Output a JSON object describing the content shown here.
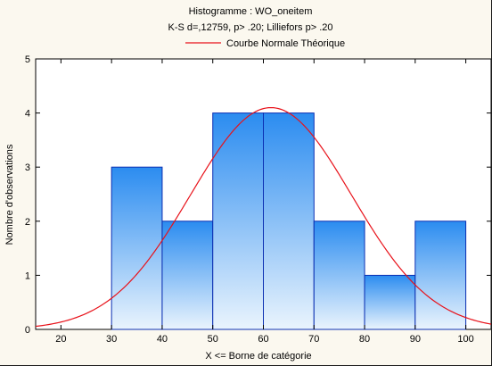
{
  "chart_data": {
    "type": "bar",
    "title": "Histogramme : WO_oneitem",
    "subtitle": "K-S d=,12759, p> .20; Lilliefors p> .20",
    "legend": {
      "label": "Courbe Normale Théorique",
      "placement": "top"
    },
    "xlabel": "X <= Borne de catégorie",
    "ylabel": "Nombre d'observations",
    "xlim": [
      15,
      105
    ],
    "ylim": [
      0,
      5
    ],
    "x_ticks": [
      20,
      30,
      40,
      50,
      60,
      70,
      80,
      90,
      100
    ],
    "y_ticks": [
      0,
      1,
      2,
      3,
      4,
      5
    ],
    "bins": [
      {
        "from": 30,
        "to": 40,
        "value": 3
      },
      {
        "from": 40,
        "to": 50,
        "value": 2
      },
      {
        "from": 50,
        "to": 60,
        "value": 4
      },
      {
        "from": 60,
        "to": 70,
        "value": 4
      },
      {
        "from": 70,
        "to": 80,
        "value": 2
      },
      {
        "from": 80,
        "to": 90,
        "value": 1
      },
      {
        "from": 90,
        "to": 100,
        "value": 2
      }
    ],
    "normal_curve": {
      "mean": 61.5,
      "sd": 15.9,
      "peak": 4.1
    },
    "grid": false,
    "colors": {
      "bar_top": "#2b8cf0",
      "bar_bottom": "#eaf4fd",
      "bar_edge": "#0b2fb2",
      "curve": "#e8121a",
      "plot_background": "#ffffff",
      "page_background": "#fbf8ef"
    }
  }
}
